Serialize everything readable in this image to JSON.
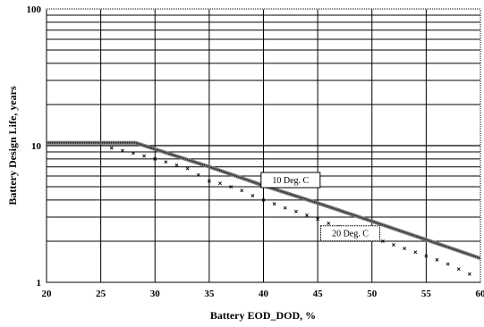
{
  "chart_data": {
    "type": "line",
    "title": "",
    "xlabel": "Battery EOD_DOD, %",
    "ylabel": "Battery Design Life, years",
    "xlim": [
      20,
      60
    ],
    "ylim": [
      1,
      100
    ],
    "yscale": "log",
    "grid": true,
    "x_ticks": [
      "20",
      "25",
      "30",
      "35",
      "40",
      "45",
      "50",
      "55",
      "60"
    ],
    "y_ticks": [
      "1",
      "10",
      "100"
    ],
    "series": [
      {
        "name": "10 Deg. C",
        "style": "solid",
        "x": [
          20,
          28.2,
          35,
          40,
          45,
          50,
          55,
          60
        ],
        "y": [
          10.5,
          10.5,
          7.0,
          5.1,
          3.8,
          2.8,
          2.05,
          1.5
        ]
      },
      {
        "name": "20 Deg. C",
        "style": "dotted",
        "x": [
          26,
          27,
          28,
          29,
          30,
          31,
          32,
          33,
          34,
          35,
          36,
          37,
          38,
          39,
          40,
          41,
          42,
          43,
          44,
          45,
          46,
          47,
          48,
          49,
          50,
          51,
          52,
          53,
          54,
          55,
          56,
          57,
          58,
          59
        ],
        "y": [
          9.6,
          9.2,
          8.8,
          8.4,
          8.0,
          7.6,
          7.2,
          6.8,
          6.1,
          5.5,
          5.3,
          5.0,
          4.7,
          4.3,
          4.0,
          3.75,
          3.5,
          3.3,
          3.1,
          2.9,
          2.7,
          2.55,
          2.4,
          2.25,
          2.12,
          2.0,
          1.88,
          1.77,
          1.66,
          1.56,
          1.46,
          1.36,
          1.25,
          1.15
        ]
      }
    ],
    "annotations": [
      {
        "text": "10 Deg. C",
        "x": 42.5,
        "y": 5.6,
        "series": 0
      },
      {
        "text": "20 Deg. C",
        "x": 48,
        "y": 2.28,
        "series": 1
      }
    ]
  }
}
